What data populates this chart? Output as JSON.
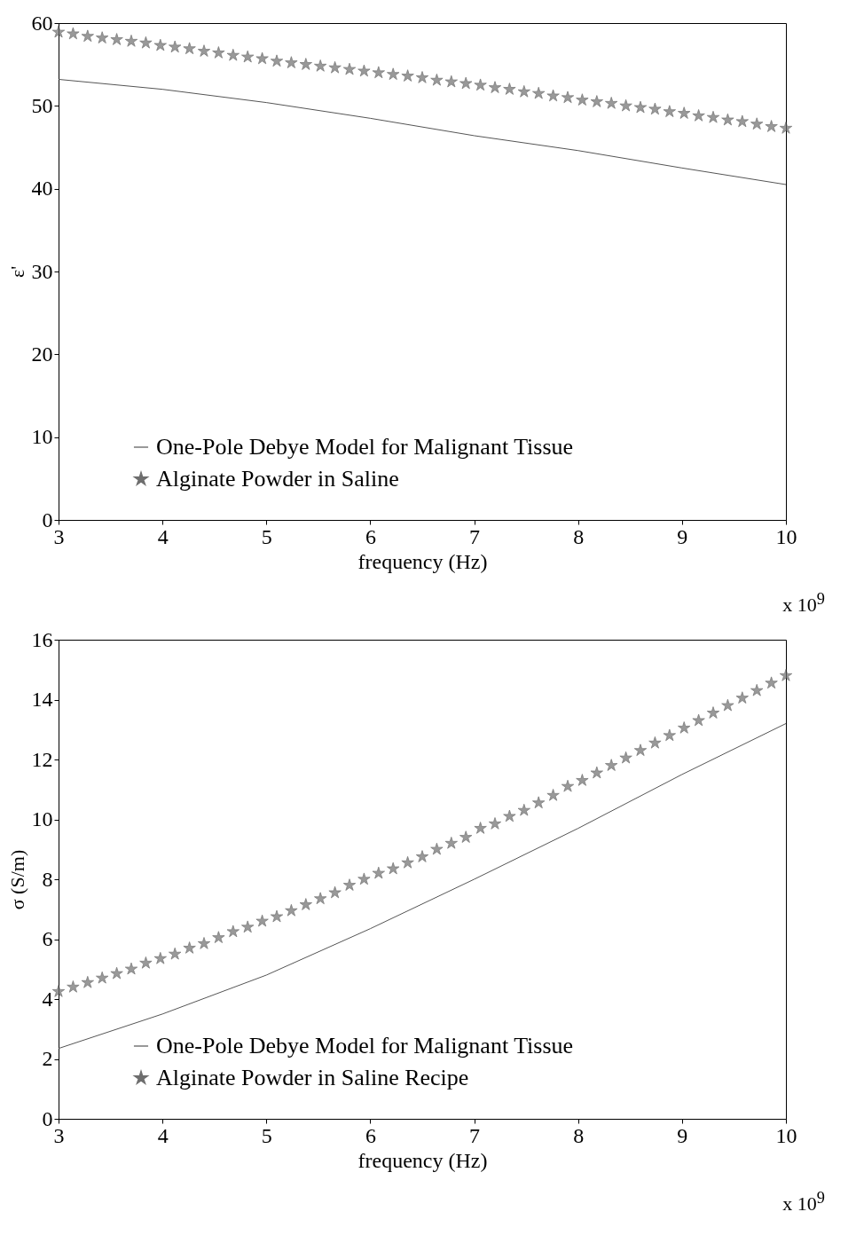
{
  "chart_data": [
    {
      "type": "line",
      "xlabel": "frequency (Hz)",
      "ylabel": "ε'",
      "xlim": [
        3,
        10
      ],
      "ylim": [
        0,
        60
      ],
      "xticks": [
        3,
        4,
        5,
        6,
        7,
        8,
        9,
        10
      ],
      "yticks": [
        0,
        10,
        20,
        30,
        40,
        50,
        60
      ],
      "legend": "bottom",
      "annotations": [
        "x 10$^{9}$"
      ],
      "series": [
        {
          "name": "One-Pole Debye Model for Malignant Tissue",
          "type": "line",
          "color": "#555555",
          "x": [
            3,
            4,
            5,
            6,
            7,
            8,
            9,
            10
          ],
          "values": [
            53.2,
            52,
            50.4,
            48.5,
            46.4,
            44.6,
            42.5,
            40.5
          ]
        },
        {
          "name": "Alginate Powder in Saline",
          "type": "scatter",
          "marker": "star",
          "color": "#6e6e6e",
          "x": [
            3,
            3.14,
            3.28,
            3.42,
            3.56,
            3.7,
            3.84,
            3.98,
            4.12,
            4.26,
            4.4,
            4.54,
            4.68,
            4.82,
            4.96,
            5.1,
            5.24,
            5.38,
            5.52,
            5.66,
            5.8,
            5.94,
            6.08,
            6.22,
            6.36,
            6.5,
            6.64,
            6.78,
            6.92,
            7.06,
            7.2,
            7.34,
            7.48,
            7.62,
            7.76,
            7.9,
            8.04,
            8.18,
            8.32,
            8.46,
            8.6,
            8.74,
            8.88,
            9.02,
            9.16,
            9.3,
            9.44,
            9.58,
            9.72,
            9.86,
            10
          ],
          "values": [
            58.9,
            58.7,
            58.4,
            58.2,
            58,
            57.8,
            57.6,
            57.3,
            57.1,
            56.9,
            56.6,
            56.4,
            56.1,
            55.9,
            55.7,
            55.4,
            55.2,
            55,
            54.8,
            54.6,
            54.4,
            54.2,
            54,
            53.8,
            53.6,
            53.4,
            53.1,
            52.9,
            52.7,
            52.5,
            52.2,
            52,
            51.7,
            51.5,
            51.2,
            51,
            50.7,
            50.5,
            50.3,
            50,
            49.8,
            49.6,
            49.3,
            49.1,
            48.8,
            48.6,
            48.3,
            48.1,
            47.8,
            47.5,
            47.3
          ]
        }
      ]
    },
    {
      "type": "line",
      "xlabel": "frequency (Hz)",
      "ylabel": "σ (S/m)",
      "xlim": [
        3,
        10
      ],
      "ylim": [
        0,
        16
      ],
      "xticks": [
        3,
        4,
        5,
        6,
        7,
        8,
        9,
        10
      ],
      "yticks": [
        0,
        2,
        4,
        6,
        8,
        10,
        12,
        14,
        16
      ],
      "legend": "bottom",
      "annotations": [
        "x 10$^{9}$"
      ],
      "series": [
        {
          "name": "One-Pole Debye Model for Malignant Tissue",
          "type": "line",
          "color": "#555555",
          "x": [
            3,
            4,
            5,
            6,
            7,
            8,
            9,
            10
          ],
          "values": [
            2.35,
            3.5,
            4.8,
            6.35,
            8,
            9.7,
            11.5,
            13.2
          ]
        },
        {
          "name": "Alginate Powder in Saline Recipe",
          "type": "scatter",
          "marker": "star",
          "color": "#6e6e6e",
          "x": [
            3,
            3.14,
            3.28,
            3.42,
            3.56,
            3.7,
            3.84,
            3.98,
            4.12,
            4.26,
            4.4,
            4.54,
            4.68,
            4.82,
            4.96,
            5.1,
            5.24,
            5.38,
            5.52,
            5.66,
            5.8,
            5.94,
            6.08,
            6.22,
            6.36,
            6.5,
            6.64,
            6.78,
            6.92,
            7.06,
            7.2,
            7.34,
            7.48,
            7.62,
            7.76,
            7.9,
            8.04,
            8.18,
            8.32,
            8.46,
            8.6,
            8.74,
            8.88,
            9.02,
            9.16,
            9.3,
            9.44,
            9.58,
            9.72,
            9.86,
            10
          ],
          "values": [
            4.25,
            4.4,
            4.55,
            4.7,
            4.85,
            5,
            5.2,
            5.35,
            5.5,
            5.7,
            5.85,
            6.05,
            6.25,
            6.4,
            6.6,
            6.75,
            6.95,
            7.15,
            7.35,
            7.55,
            7.8,
            8,
            8.2,
            8.35,
            8.55,
            8.75,
            9,
            9.2,
            9.4,
            9.7,
            9.85,
            10.1,
            10.3,
            10.55,
            10.8,
            11.1,
            11.3,
            11.55,
            11.8,
            12.05,
            12.3,
            12.55,
            12.8,
            13.05,
            13.3,
            13.55,
            13.8,
            14.05,
            14.3,
            14.55,
            14.8
          ]
        }
      ]
    }
  ]
}
